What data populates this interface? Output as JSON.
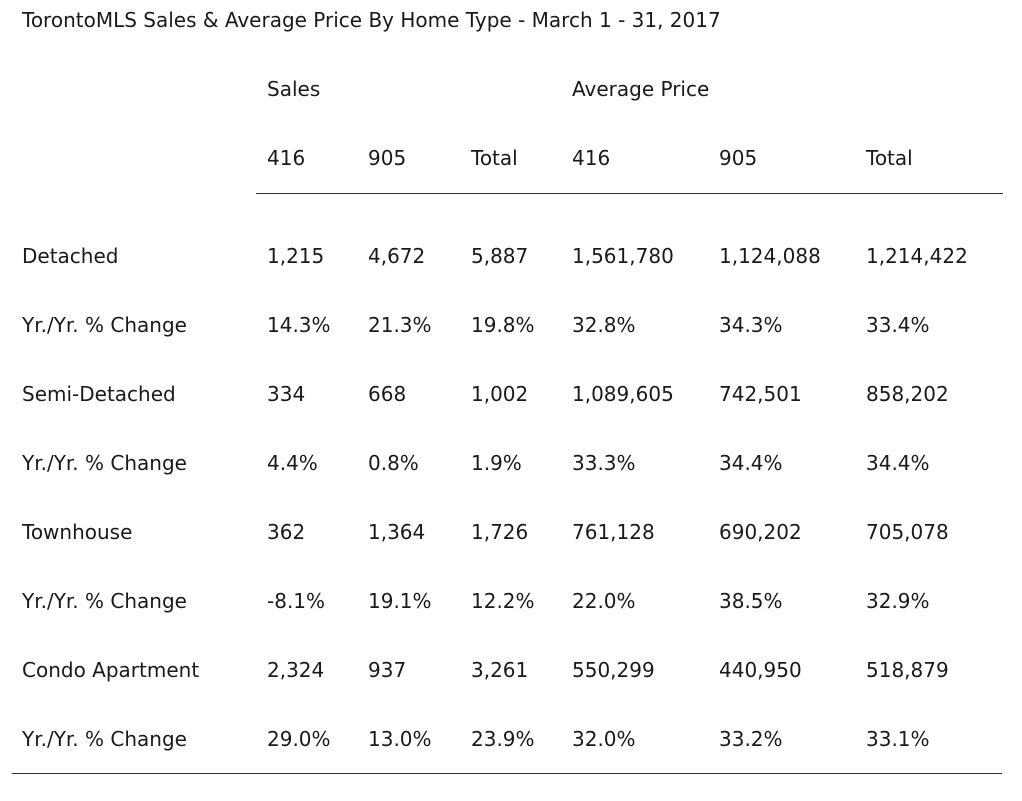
{
  "title": "TorontoMLS Sales & Average Price  By Home Type -  March 1 - 31, 2017",
  "groups": {
    "sales": "Sales",
    "average_price": "Average Price"
  },
  "columns": [
    "416",
    "905",
    "Total",
    "416",
    "905",
    "Total"
  ],
  "rows": [
    {
      "label": "Detached",
      "values": [
        "1,215",
        "4,672",
        "5,887",
        "1,561,780",
        "1,124,088",
        "1,214,422"
      ]
    },
    {
      "label": "Yr./Yr. % Change",
      "values": [
        "14.3%",
        "21.3%",
        "19.8%",
        "32.8%",
        "34.3%",
        "33.4%"
      ]
    },
    {
      "label": "Semi-Detached",
      "values": [
        "334",
        "668",
        "1,002",
        "1,089,605",
        "742,501",
        "858,202"
      ]
    },
    {
      "label": "Yr./Yr. % Change",
      "values": [
        "4.4%",
        "0.8%",
        "1.9%",
        "33.3%",
        "34.4%",
        "34.4%"
      ]
    },
    {
      "label": "Townhouse",
      "values": [
        "362",
        "1,364",
        "1,726",
        "761,128",
        "690,202",
        "705,078"
      ]
    },
    {
      "label": "Yr./Yr. % Change",
      "values": [
        "-8.1%",
        "19.1%",
        "12.2%",
        "22.0%",
        "38.5%",
        "32.9%"
      ]
    },
    {
      "label": "Condo Apartment",
      "values": [
        "2,324",
        "937",
        "3,261",
        "550,299",
        "440,950",
        "518,879"
      ]
    },
    {
      "label": "Yr./Yr. % Change",
      "values": [
        "29.0%",
        "13.0%",
        "23.9%",
        "32.0%",
        "33.2%",
        "33.1%"
      ]
    }
  ]
}
